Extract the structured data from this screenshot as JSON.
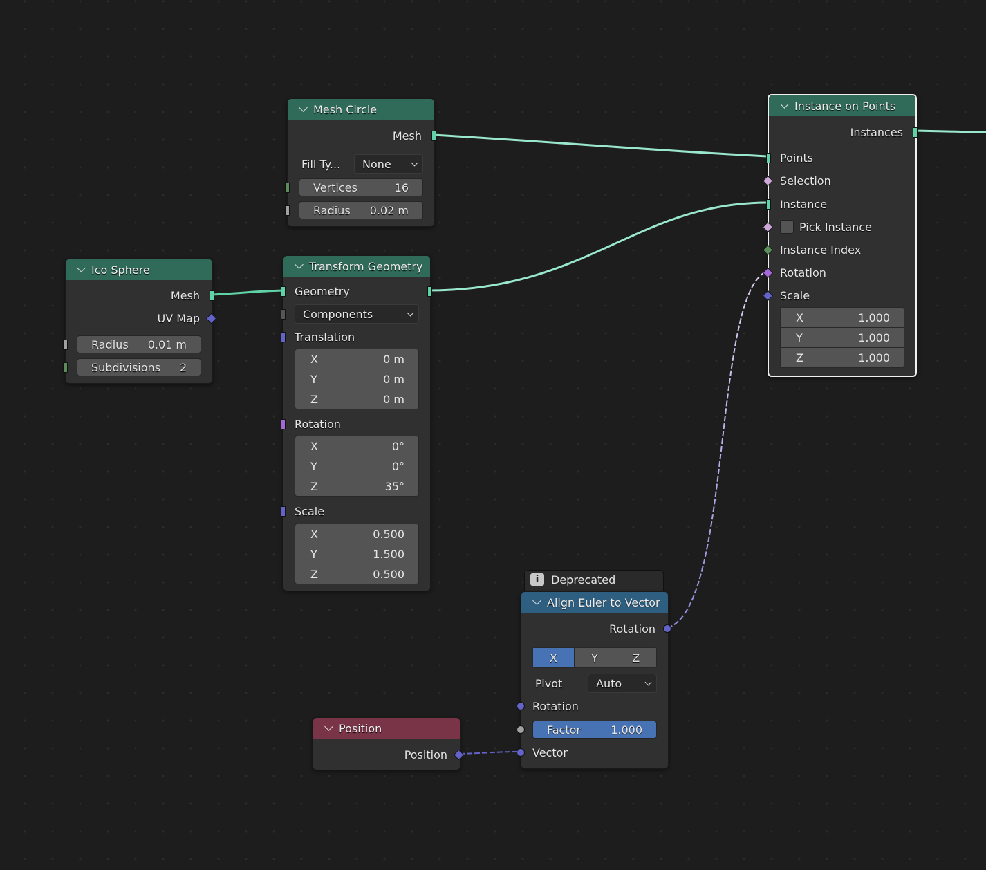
{
  "colors": {
    "geometry": "#5fd2a8",
    "int": "#5c8c5c",
    "float": "#a1a1a1",
    "vector": "#6464c8",
    "rotation": "#a469d6",
    "boolean": "#cba8d8",
    "header_geometry": "#2f6b58",
    "header_vector": "#2e5f80",
    "header_input": "#7a3448",
    "accent": "#4772b3"
  },
  "nodes": {
    "mesh_circle": {
      "title": "Mesh Circle",
      "rows": [
        {
          "kind": "out",
          "label": "Mesh",
          "socket": "geometry"
        },
        {
          "kind": "dropdown",
          "label": "Fill Ty...",
          "value": "None"
        },
        {
          "kind": "field",
          "label": "Vertices",
          "value": "16",
          "socket": "int"
        },
        {
          "kind": "field",
          "label": "Radius",
          "value": "0.02 m",
          "socket": "float"
        }
      ]
    },
    "ico_sphere": {
      "title": "Ico Sphere",
      "rows": [
        {
          "kind": "out",
          "label": "Mesh",
          "socket": "geometry"
        },
        {
          "kind": "out",
          "label": "UV Map",
          "socket": "vector_field"
        },
        {
          "kind": "field",
          "label": "Radius",
          "value": "0.01 m",
          "socket": "float"
        },
        {
          "kind": "field",
          "label": "Subdivisions",
          "value": "2",
          "socket": "int"
        }
      ]
    },
    "transform_geometry": {
      "title": "Transform Geometry",
      "rows": [
        {
          "kind": "io",
          "label": "Geometry",
          "socket": "geometry"
        },
        {
          "kind": "dropdown_full",
          "value": "Components",
          "socket": "gray"
        },
        {
          "kind": "in",
          "label": "Translation",
          "socket": "vector"
        },
        {
          "kind": "vector",
          "values": [
            [
              "X",
              "0 m"
            ],
            [
              "Y",
              "0 m"
            ],
            [
              "Z",
              "0 m"
            ]
          ]
        },
        {
          "kind": "in",
          "label": "Rotation",
          "socket": "rotation"
        },
        {
          "kind": "vector",
          "values": [
            [
              "X",
              "0°"
            ],
            [
              "Y",
              "0°"
            ],
            [
              "Z",
              "35°"
            ]
          ]
        },
        {
          "kind": "in",
          "label": "Scale",
          "socket": "vector"
        },
        {
          "kind": "vector",
          "values": [
            [
              "X",
              "0.500"
            ],
            [
              "Y",
              "1.500"
            ],
            [
              "Z",
              "0.500"
            ]
          ]
        }
      ]
    },
    "instance_on_points": {
      "title": "Instance on Points",
      "rows": [
        {
          "kind": "out",
          "label": "Instances",
          "socket": "geometry"
        },
        {
          "kind": "in",
          "label": "Points",
          "socket": "geometry"
        },
        {
          "kind": "in",
          "label": "Selection",
          "socket": "boolean_field"
        },
        {
          "kind": "in",
          "label": "Instance",
          "socket": "geometry"
        },
        {
          "kind": "checkbox",
          "label": "Pick Instance",
          "socket": "boolean_field",
          "checked": false
        },
        {
          "kind": "in",
          "label": "Instance Index",
          "socket": "int_field"
        },
        {
          "kind": "in",
          "label": "Rotation",
          "socket": "rotation_field"
        },
        {
          "kind": "in",
          "label": "Scale",
          "socket": "vector_field"
        },
        {
          "kind": "vector",
          "values": [
            [
              "X",
              "1.000"
            ],
            [
              "Y",
              "1.000"
            ],
            [
              "Z",
              "1.000"
            ]
          ]
        }
      ]
    },
    "align_euler": {
      "warning": "Deprecated",
      "title": "Align Euler to Vector",
      "rows": [
        {
          "kind": "out",
          "label": "Rotation",
          "socket": "vector_circ"
        },
        {
          "kind": "segmented",
          "options": [
            "X",
            "Y",
            "Z"
          ],
          "selected": "X"
        },
        {
          "kind": "dropdown",
          "label": "Pivot",
          "value": "Auto"
        },
        {
          "kind": "in",
          "label": "Rotation",
          "socket": "vector_circ"
        },
        {
          "kind": "field",
          "label": "Factor",
          "value": "1.000",
          "socket": "float_circ",
          "highlight": true
        },
        {
          "kind": "in",
          "label": "Vector",
          "socket": "vector_circ"
        }
      ]
    },
    "position": {
      "title": "Position",
      "rows": [
        {
          "kind": "out",
          "label": "Position",
          "socket": "vector_field"
        }
      ]
    }
  }
}
